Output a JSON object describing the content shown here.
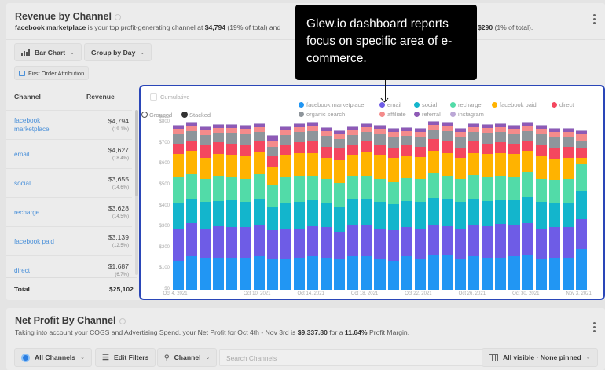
{
  "revenue_card": {
    "title": "Revenue by Channel",
    "summary": {
      "top_channel": "facebook marketplace",
      "text1": " is your top profit-generating channel at ",
      "top_value": "$4,794",
      "text2": " (19% of total) and",
      "tail_value": "$290",
      "tail_text": " (1% of total)."
    },
    "controls": {
      "chart_type": "Bar Chart",
      "group_by": "Group by Day",
      "attribution": "First Order Attribution"
    },
    "table": {
      "headers": [
        "Channel",
        "Revenue"
      ],
      "rows": [
        {
          "channel": "facebook marketplace",
          "revenue": "$4,794",
          "pct": "(19.1%)"
        },
        {
          "channel": "email",
          "revenue": "$4,627",
          "pct": "(18.4%)"
        },
        {
          "channel": "social",
          "revenue": "$3,655",
          "pct": "(14.6%)"
        },
        {
          "channel": "recharge",
          "revenue": "$3,628",
          "pct": "(14.5%)"
        },
        {
          "channel": "facebook paid",
          "revenue": "$3,139",
          "pct": "(12.5%)"
        },
        {
          "channel": "direct",
          "revenue": "$1,687",
          "pct": "(6.7%)"
        }
      ],
      "total_label": "Total",
      "total_value": "$25,102"
    },
    "chart_options": {
      "cumulative_label": "Cumulative",
      "grouped_label": "Grouped",
      "stacked_label": "Stacked",
      "mode": "Stacked"
    }
  },
  "tooltip": {
    "text": "Glew.io dashboard reports focus on specific area of e-commerce."
  },
  "net_profit_card": {
    "title": "Net Profit By Channel",
    "summary": {
      "text1": "Taking into account your COGS and Advertising Spend, your Net Profit for Oct 4th - Nov 3rd is ",
      "profit": "$9,337.80",
      "text2": " for a ",
      "margin": "11.64%",
      "text3": " Profit Margin."
    },
    "controls": {
      "channels": "All Channels",
      "filters": "Edit Filters",
      "search_field": "Channel",
      "search_placeholder": "Search Channels",
      "columns": "All visible · None pinned"
    }
  },
  "chart_data": {
    "type": "bar",
    "stacked": true,
    "title": "",
    "xlabel": "",
    "ylabel": "",
    "ylim": [
      0,
      823
    ],
    "y_ticks": [
      "$0",
      "$100",
      "$200",
      "$300",
      "$400",
      "$500",
      "$600",
      "$700",
      "$800",
      "$823"
    ],
    "x_tick_labels": [
      "Oct 4, 2021",
      "Oct 10, 2021",
      "Oct 14, 2021",
      "Oct 18, 2021",
      "Oct 22, 2021",
      "Oct 26, 2021",
      "Oct 30, 2021",
      "Nov 3, 2021"
    ],
    "x_tick_indices": [
      0,
      6,
      10,
      14,
      18,
      22,
      26,
      30
    ],
    "grid": false,
    "legend_position": "top-right",
    "categories": [
      "Oct 4",
      "Oct 5",
      "Oct 6",
      "Oct 7",
      "Oct 8",
      "Oct 9",
      "Oct 10",
      "Oct 11",
      "Oct 12",
      "Oct 13",
      "Oct 14",
      "Oct 15",
      "Oct 16",
      "Oct 17",
      "Oct 18",
      "Oct 19",
      "Oct 20",
      "Oct 21",
      "Oct 22",
      "Oct 23",
      "Oct 24",
      "Oct 25",
      "Oct 26",
      "Oct 27",
      "Oct 28",
      "Oct 29",
      "Oct 30",
      "Oct 31",
      "Nov 1",
      "Nov 2",
      "Nov 3"
    ],
    "series": [
      {
        "name": "facebook marketplace",
        "color": "#2196f3",
        "values": [
          140,
          160,
          150,
          150,
          155,
          150,
          160,
          145,
          145,
          150,
          160,
          150,
          145,
          160,
          160,
          145,
          140,
          160,
          145,
          165,
          165,
          145,
          160,
          155,
          155,
          160,
          165,
          145,
          155,
          155,
          195
        ]
      },
      {
        "name": "email",
        "color": "#6e5ce6",
        "values": [
          150,
          160,
          145,
          155,
          145,
          150,
          150,
          140,
          150,
          145,
          145,
          150,
          135,
          150,
          150,
          150,
          145,
          140,
          150,
          145,
          140,
          150,
          150,
          150,
          160,
          150,
          155,
          145,
          145,
          145,
          145
        ]
      },
      {
        "name": "social",
        "color": "#13b5cc",
        "values": [
          125,
          115,
          125,
          120,
          130,
          120,
          125,
          110,
          120,
          125,
          125,
          115,
          115,
          125,
          125,
          125,
          125,
          125,
          125,
          130,
          130,
          125,
          125,
          120,
          115,
          120,
          125,
          130,
          115,
          115,
          135
        ]
      },
      {
        "name": "recharge",
        "color": "#52dba8",
        "values": [
          125,
          120,
          110,
          120,
          110,
          110,
          120,
          110,
          125,
          125,
          115,
          115,
          115,
          110,
          110,
          110,
          105,
          110,
          110,
          120,
          110,
          110,
          115,
          115,
          115,
          110,
          120,
          110,
          110,
          115,
          125
        ]
      },
      {
        "name": "facebook paid",
        "color": "#ffb300",
        "values": [
          110,
          110,
          100,
          105,
          105,
          110,
          105,
          85,
          105,
          110,
          110,
          100,
          110,
          100,
          115,
          115,
          115,
          105,
          105,
          105,
          110,
          100,
          105,
          110,
          110,
          110,
          100,
          110,
          100,
          100,
          30
        ]
      },
      {
        "name": "direct",
        "color": "#f4475f",
        "values": [
          50,
          50,
          60,
          55,
          55,
          55,
          50,
          50,
          50,
          50,
          55,
          55,
          55,
          50,
          50,
          50,
          50,
          50,
          50,
          55,
          60,
          50,
          55,
          50,
          50,
          50,
          45,
          55,
          55,
          55,
          45
        ]
      },
      {
        "name": "organic search",
        "color": "#8e959b",
        "values": [
          45,
          45,
          50,
          45,
          50,
          50,
          45,
          45,
          45,
          50,
          50,
          50,
          45,
          45,
          45,
          50,
          50,
          45,
          45,
          45,
          45,
          50,
          45,
          50,
          50,
          45,
          50,
          50,
          50,
          45,
          40
        ]
      },
      {
        "name": "affiliate",
        "color": "#f48b8b",
        "values": [
          25,
          25,
          25,
          25,
          25,
          25,
          25,
          30,
          25,
          25,
          25,
          25,
          25,
          25,
          25,
          25,
          25,
          25,
          25,
          25,
          25,
          25,
          25,
          25,
          25,
          25,
          25,
          25,
          25,
          25,
          30
        ]
      },
      {
        "name": "referral",
        "color": "#8e5ab6",
        "values": [
          15,
          15,
          15,
          15,
          15,
          15,
          15,
          20,
          15,
          15,
          15,
          15,
          15,
          15,
          15,
          15,
          15,
          15,
          15,
          15,
          15,
          15,
          15,
          15,
          15,
          15,
          15,
          15,
          15,
          15,
          15
        ]
      },
      {
        "name": "instagram",
        "color": "#bba7d6",
        "values": [
          5,
          5,
          5,
          5,
          5,
          5,
          5,
          5,
          5,
          5,
          5,
          5,
          5,
          5,
          5,
          5,
          5,
          5,
          5,
          5,
          5,
          5,
          5,
          5,
          5,
          5,
          5,
          5,
          5,
          5,
          5
        ]
      }
    ]
  }
}
